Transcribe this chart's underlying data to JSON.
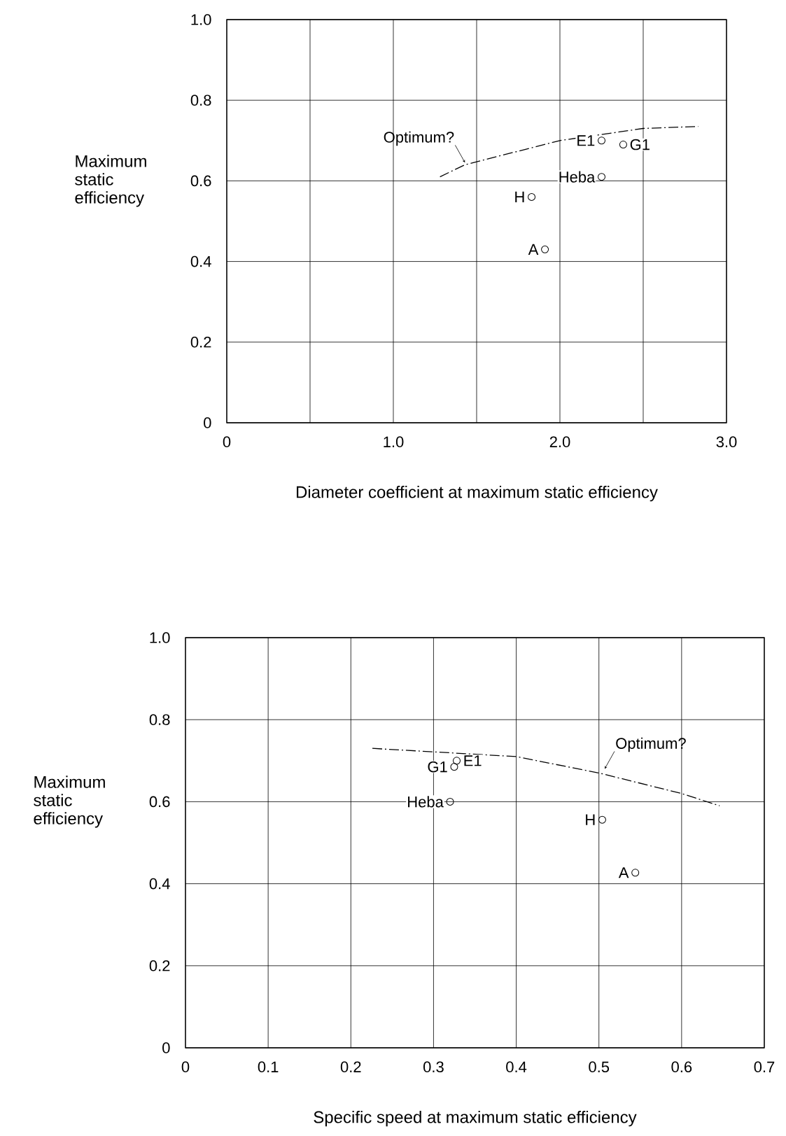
{
  "chart_data": [
    {
      "type": "scatter",
      "xlabel": "Diameter coefficient at maximum static efficiency",
      "ylabel": "Maximum static efficiency",
      "xlim": [
        0,
        3.0
      ],
      "ylim": [
        0,
        1.0
      ],
      "grid": true,
      "xticks": [
        0,
        {
          "value": 0.5,
          "label": null
        },
        {
          "value": 1.0,
          "label": "1.0"
        },
        {
          "value": 1.5,
          "label": null
        },
        {
          "value": 2.0,
          "label": "2.0"
        },
        {
          "value": 2.5,
          "label": null
        },
        {
          "value": 3.0,
          "label": "3.0"
        }
      ],
      "yticks": [
        0,
        {
          "value": 0.2,
          "label": "0.2"
        },
        {
          "value": 0.4,
          "label": "0.4"
        },
        {
          "value": 0.6,
          "label": "0.6"
        },
        {
          "value": 0.8,
          "label": "0.8"
        },
        {
          "value": 1.0,
          "label": "1.0"
        }
      ],
      "series": [
        {
          "color": "#000000",
          "marker": "circle",
          "x": [
            1.91,
            1.83,
            2.25,
            2.25,
            2.38
          ],
          "values": [
            0.43,
            0.56,
            0.61,
            0.7,
            0.69
          ]
        },
        {
          "type": "line",
          "color": "#000000",
          "marker": "none",
          "line_style": "dashed",
          "x": [
            1.28,
            1.43,
            2.0,
            2.5,
            2.83
          ],
          "values": [
            0.61,
            0.64,
            0.7,
            0.73,
            0.735
          ]
        }
      ],
      "annotations": [
        {
          "text": "A",
          "x": 1.91,
          "y": 0.43
        },
        {
          "text": "H",
          "x": 1.83,
          "y": 0.56
        },
        {
          "text": "Heba",
          "x": 2.25,
          "y": 0.61
        },
        {
          "text": "E1",
          "x": 2.25,
          "y": 0.7
        },
        {
          "text": "G1",
          "x": 2.38,
          "y": 0.69
        },
        {
          "text": "Optimum?",
          "x": 1.43,
          "y": 0.64
        }
      ]
    },
    {
      "type": "scatter",
      "xlabel": "Specific speed at maximum static efficiency",
      "ylabel": "Maximum static efficiency",
      "xlim": [
        0,
        0.7
      ],
      "ylim": [
        0,
        1.0
      ],
      "grid": true,
      "xticks": [
        0,
        0.1,
        0.2,
        0.3,
        0.4,
        0.5,
        0.6,
        0.7
      ],
      "yticks": [
        0,
        0.2,
        0.4,
        0.6,
        0.8,
        {
          "value": 1.0,
          "label": "1.0"
        }
      ],
      "series": [
        {
          "color": "#000000",
          "marker": "circle",
          "x": [
            0.325,
            0.328,
            0.32,
            0.504,
            0.544
          ],
          "values": [
            0.685,
            0.7,
            0.6,
            0.556,
            0.427
          ]
        },
        {
          "type": "line",
          "color": "#000000",
          "marker": "none",
          "line_style": "dashed",
          "x": [
            0.226,
            0.4,
            0.5,
            0.6,
            0.646
          ],
          "values": [
            0.73,
            0.71,
            0.67,
            0.62,
            0.59
          ]
        }
      ],
      "annotations": [
        {
          "text": "G1",
          "x": 0.325,
          "y": 0.685
        },
        {
          "text": "E1",
          "x": 0.328,
          "y": 0.7
        },
        {
          "text": "Heba",
          "x": 0.32,
          "y": 0.6
        },
        {
          "text": "H",
          "x": 0.504,
          "y": 0.556
        },
        {
          "text": "A",
          "x": 0.544,
          "y": 0.427
        },
        {
          "text": "Optimum?",
          "x": 0.507,
          "y": 0.675
        }
      ]
    }
  ]
}
